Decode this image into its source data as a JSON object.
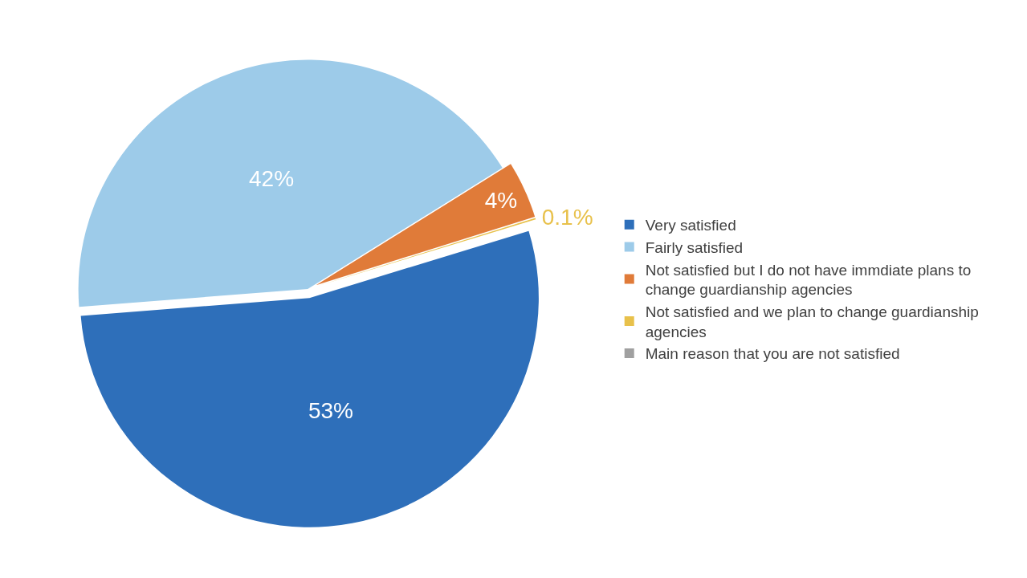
{
  "chart_data": {
    "type": "pie",
    "categories": [
      "Very satisfied",
      "Fairly satisfied",
      "Not satisfied but I do not have immdiate plans to change guardianship agencies",
      "Not satisfied and we plan to change guardianship agencies",
      "Main reason that you are not satisfied"
    ],
    "values": [
      53,
      42,
      4,
      0.1,
      0
    ],
    "value_labels": [
      "53%",
      "42%",
      "4%",
      "0.1%",
      null
    ],
    "colors": [
      "#2e6fba",
      "#9dcbe9",
      "#e07b39",
      "#e8c14b",
      "#a0a0a0"
    ],
    "legend": "right"
  }
}
